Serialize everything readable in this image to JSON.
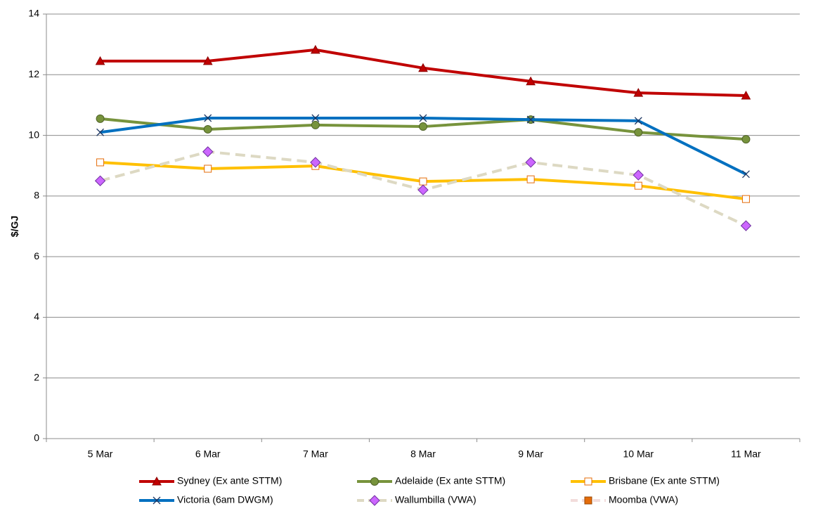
{
  "chart_data": {
    "type": "line",
    "y_label": "$/GJ",
    "categories": [
      "5 Mar",
      "6 Mar",
      "7 Mar",
      "8 Mar",
      "9 Mar",
      "10 Mar",
      "11 Mar"
    ],
    "ylim": [
      0,
      14
    ],
    "yticks": [
      0,
      2,
      4,
      6,
      8,
      10,
      12,
      14
    ],
    "grid": true,
    "legend": "bottom",
    "series": [
      {
        "name": "Sydney (Ex ante STTM)",
        "color": "#c00000",
        "marker": "triangle",
        "marker_fill": "#c00000",
        "marker_stroke": "#8b0000",
        "dash": false,
        "values": [
          12.45,
          12.45,
          12.82,
          12.22,
          11.78,
          11.4,
          11.31
        ]
      },
      {
        "name": "Adelaide (Ex ante STTM)",
        "color": "#77933c",
        "marker": "circle",
        "marker_fill": "#77933c",
        "marker_stroke": "#4f6228",
        "dash": false,
        "values": [
          10.55,
          10.2,
          10.34,
          10.29,
          10.52,
          10.1,
          9.87
        ]
      },
      {
        "name": "Brisbane (Ex ante STTM)",
        "color": "#ffc000",
        "marker": "square",
        "marker_fill": "#ffffff",
        "marker_stroke": "#e46c0a",
        "dash": false,
        "values": [
          9.11,
          8.9,
          8.99,
          8.48,
          8.55,
          8.34,
          7.9
        ]
      },
      {
        "name": "Victoria (6am DWGM)",
        "color": "#0070c0",
        "marker": "cross",
        "marker_fill": "none",
        "marker_stroke": "#1f3864",
        "dash": false,
        "values": [
          10.1,
          10.57,
          10.57,
          10.57,
          10.52,
          10.48,
          8.72
        ]
      },
      {
        "name": "Wallumbilla (VWA)",
        "color": "#ddd9c3",
        "marker": "diamond",
        "marker_fill": "#cc66ff",
        "marker_stroke": "#7030a0",
        "dash": true,
        "values": [
          8.5,
          9.46,
          9.11,
          8.2,
          9.11,
          8.69,
          7.02
        ]
      },
      {
        "name": "Moomba (VWA)",
        "color": "#f2dcdb",
        "marker": "square",
        "marker_fill": "#e46c0a",
        "marker_stroke": "#984807",
        "dash": true,
        "values": [
          null,
          null,
          null,
          null,
          null,
          null,
          null
        ]
      }
    ]
  }
}
